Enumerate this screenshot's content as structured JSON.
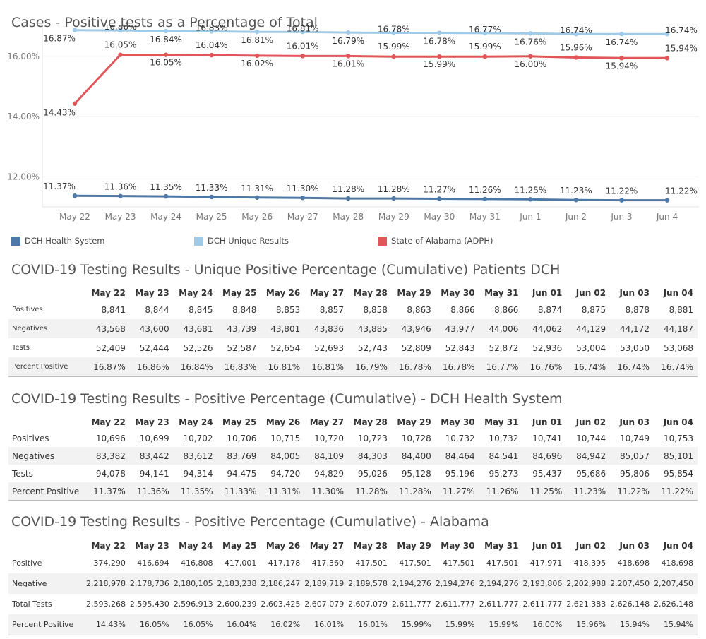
{
  "chart_title": "Cases - Positive tests as a Percentage of Total",
  "chart_data": {
    "type": "line",
    "categories": [
      "May 22",
      "May 23",
      "May 24",
      "May 25",
      "May 26",
      "May 27",
      "May 28",
      "May 29",
      "May 30",
      "May 31",
      "Jun 1",
      "Jun 2",
      "Jun 3",
      "Jun 4"
    ],
    "ylim": [
      11.0,
      17.05
    ],
    "yticks": [
      12,
      14,
      16
    ],
    "ytick_labels": [
      "12.00%",
      "14.00%",
      "16.00%"
    ],
    "grid": true,
    "legend_position": "bottom",
    "series": [
      {
        "name": "DCH Health System",
        "color": "#4e79a7",
        "values": [
          11.37,
          11.36,
          11.35,
          11.33,
          11.31,
          11.3,
          11.28,
          11.28,
          11.27,
          11.26,
          11.25,
          11.23,
          11.22,
          11.22
        ],
        "labels": [
          "11.37%",
          "11.36%",
          "11.35%",
          "11.33%",
          "11.31%",
          "11.30%",
          "11.28%",
          "11.28%",
          "11.27%",
          "11.26%",
          "11.25%",
          "11.23%",
          "11.22%",
          "11.22%"
        ]
      },
      {
        "name": "DCH Unique Results",
        "color": "#a0cbe8",
        "values": [
          16.87,
          16.86,
          16.84,
          16.83,
          16.81,
          16.81,
          16.79,
          16.78,
          16.78,
          16.77,
          16.76,
          16.74,
          16.74,
          16.74
        ],
        "labels": [
          "16.87%",
          "16.86%",
          "16.84%",
          "16.83%",
          "16.81%",
          "16.81%",
          "16.79%",
          "16.78%",
          "16.78%",
          "16.77%",
          "16.76%",
          "16.74%",
          "16.74%",
          "16.74%"
        ]
      },
      {
        "name": "State of Alabama (ADPH)",
        "color": "#e15759",
        "values": [
          14.43,
          16.05,
          16.05,
          16.04,
          16.02,
          16.01,
          16.01,
          15.99,
          15.99,
          15.99,
          16.0,
          15.96,
          15.94,
          15.94
        ],
        "labels": [
          "14.43%",
          "16.05%",
          "16.05%",
          "16.04%",
          "16.02%",
          "16.01%",
          "16.01%",
          "15.99%",
          "15.99%",
          "15.99%",
          "16.00%",
          "15.96%",
          "15.94%",
          "15.94%"
        ]
      }
    ]
  },
  "tables": [
    {
      "title": "COVID-19 Testing Results - Unique Positive Percentage (Cumulative) Patients DCH",
      "headers": [
        "May 22",
        "May 23",
        "May 24",
        "May 25",
        "May 26",
        "May 27",
        "May 28",
        "May 29",
        "May 30",
        "May 31",
        "Jun 01",
        "Jun 02",
        "Jun 03",
        "Jun 04"
      ],
      "rows": [
        {
          "label": "Positives",
          "cells": [
            "8,841",
            "8,844",
            "8,845",
            "8,848",
            "8,853",
            "8,857",
            "8,858",
            "8,863",
            "8,866",
            "8,866",
            "8,874",
            "8,875",
            "8,878",
            "8,881"
          ]
        },
        {
          "label": "Negatives",
          "cells": [
            "43,568",
            "43,600",
            "43,681",
            "43,739",
            "43,801",
            "43,836",
            "43,885",
            "43,946",
            "43,977",
            "44,006",
            "44,062",
            "44,129",
            "44,172",
            "44,187"
          ]
        },
        {
          "label": "Tests",
          "cells": [
            "52,409",
            "52,444",
            "52,526",
            "52,587",
            "52,654",
            "52,693",
            "52,743",
            "52,809",
            "52,843",
            "52,872",
            "52,936",
            "53,004",
            "53,050",
            "53,068"
          ]
        },
        {
          "label": "Percent Positive",
          "cells": [
            "16.87%",
            "16.86%",
            "16.84%",
            "16.83%",
            "16.81%",
            "16.81%",
            "16.79%",
            "16.78%",
            "16.78%",
            "16.77%",
            "16.76%",
            "16.74%",
            "16.74%",
            "16.74%"
          ]
        }
      ]
    },
    {
      "title": "COVID-19 Testing Results - Positive Percentage (Cumulative) - DCH Health System",
      "headers": [
        "May 22",
        "May 23",
        "May 24",
        "May 25",
        "May 26",
        "May 27",
        "May 28",
        "May 29",
        "May 30",
        "May 31",
        "Jun 01",
        "Jun 02",
        "Jun 03",
        "Jun 04"
      ],
      "rows": [
        {
          "label": "Positives",
          "cells": [
            "10,696",
            "10,699",
            "10,702",
            "10,706",
            "10,715",
            "10,720",
            "10,723",
            "10,728",
            "10,732",
            "10,732",
            "10,741",
            "10,744",
            "10,749",
            "10,753"
          ]
        },
        {
          "label": "Negatives",
          "cells": [
            "83,382",
            "83,442",
            "83,612",
            "83,769",
            "84,005",
            "84,109",
            "84,303",
            "84,400",
            "84,464",
            "84,541",
            "84,696",
            "84,942",
            "85,057",
            "85,101"
          ]
        },
        {
          "label": "Tests",
          "cells": [
            "94,078",
            "94,141",
            "94,314",
            "94,475",
            "94,720",
            "94,829",
            "95,026",
            "95,128",
            "95,196",
            "95,273",
            "95,437",
            "95,686",
            "95,806",
            "95,854"
          ]
        },
        {
          "label": "Percent Positive",
          "cells": [
            "11.37%",
            "11.36%",
            "11.35%",
            "11.33%",
            "11.31%",
            "11.30%",
            "11.28%",
            "11.28%",
            "11.27%",
            "11.26%",
            "11.25%",
            "11.23%",
            "11.22%",
            "11.22%"
          ]
        }
      ]
    },
    {
      "title": "COVID-19 Testing Results - Positive Percentage (Cumulative) - Alabama",
      "headers": [
        "May 22",
        "May 23",
        "May 24",
        "May 25",
        "May 26",
        "May 27",
        "May 28",
        "May 29",
        "May 30",
        "May 31",
        "Jun 01",
        "Jun 02",
        "Jun 03",
        "Jun 04"
      ],
      "rows": [
        {
          "label": "Positive",
          "cells": [
            "374,290",
            "416,694",
            "416,808",
            "417,001",
            "417,178",
            "417,360",
            "417,501",
            "417,501",
            "417,501",
            "417,501",
            "417,971",
            "418,395",
            "418,698",
            "418,698"
          ]
        },
        {
          "label": "Negative",
          "cells": [
            "2,218,978",
            "2,178,736",
            "2,180,105",
            "2,183,238",
            "2,186,247",
            "2,189,719",
            "2,189,578",
            "2,194,276",
            "2,194,276",
            "2,194,276",
            "2,193,806",
            "2,202,988",
            "2,207,450",
            "2,207,450"
          ]
        },
        {
          "label": "Total Tests",
          "cells": [
            "2,593,268",
            "2,595,430",
            "2,596,913",
            "2,600,239",
            "2,603,425",
            "2,607,079",
            "2,607,079",
            "2,611,777",
            "2,611,777",
            "2,611,777",
            "2,611,777",
            "2,621,383",
            "2,626,148",
            "2,626,148"
          ]
        },
        {
          "label": "Percent Positive",
          "cells": [
            "14.43%",
            "16.05%",
            "16.05%",
            "16.04%",
            "16.02%",
            "16.01%",
            "16.01%",
            "15.99%",
            "15.99%",
            "15.99%",
            "16.00%",
            "15.96%",
            "15.94%",
            "15.94%"
          ]
        }
      ]
    }
  ]
}
